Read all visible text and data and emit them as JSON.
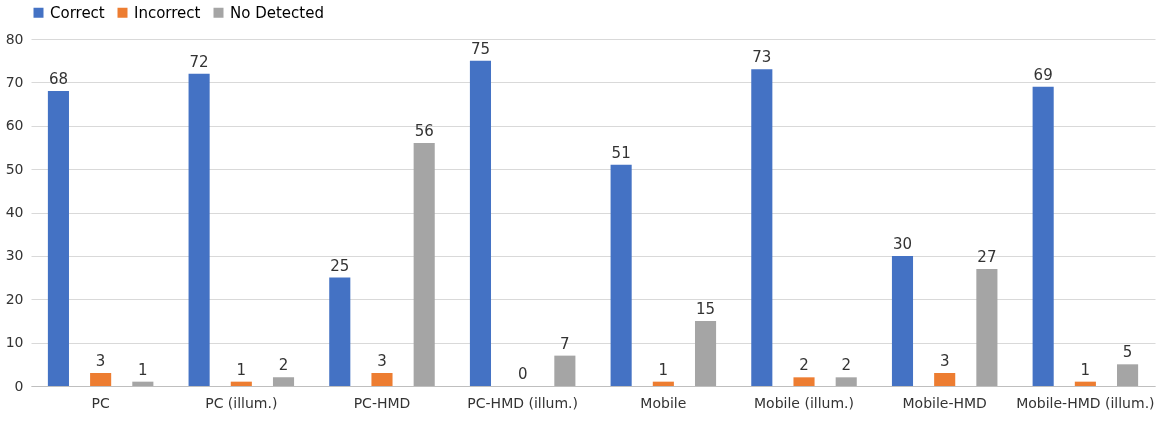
{
  "chart_data": {
    "type": "bar",
    "categories": [
      "PC",
      "PC (illum.)",
      "PC-HMD",
      "PC-HMD (illum.)",
      "Mobile",
      "Mobile (illum.)",
      "Mobile-HMD",
      "Mobile-HMD (illum.)"
    ],
    "series": [
      {
        "name": "Correct",
        "color": "#4472c4",
        "values": [
          68,
          72,
          25,
          75,
          51,
          73,
          30,
          69
        ]
      },
      {
        "name": "Incorrect",
        "color": "#ed7d31",
        "values": [
          3,
          1,
          3,
          0,
          1,
          2,
          3,
          1
        ]
      },
      {
        "name": "No Detected",
        "color": "#a5a5a5",
        "values": [
          1,
          2,
          56,
          7,
          15,
          2,
          27,
          5
        ]
      }
    ],
    "ylim": [
      0,
      80
    ],
    "yticks": [
      0,
      10,
      20,
      30,
      40,
      50,
      60,
      70,
      80
    ],
    "grid": "y",
    "legend": "top",
    "data_labels": true
  }
}
